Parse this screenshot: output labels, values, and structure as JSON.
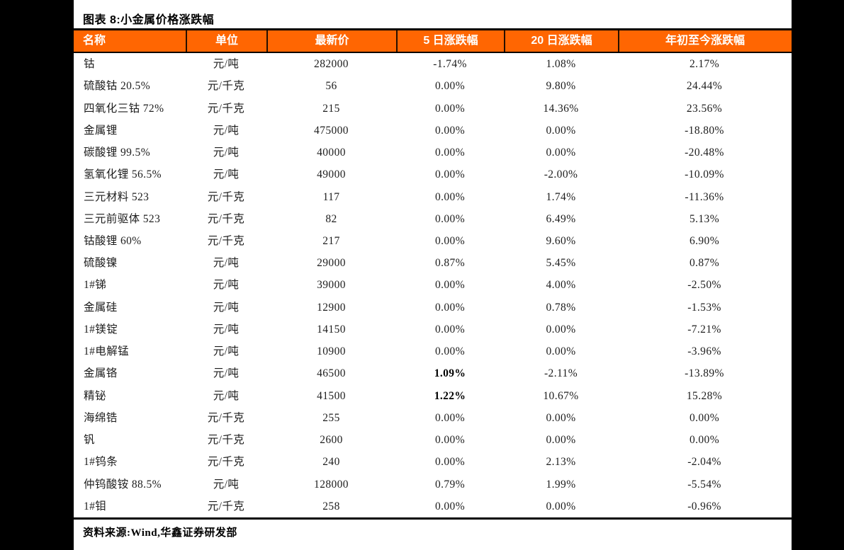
{
  "page": {
    "title": "图表 8:小金属价格涨跌幅",
    "source_note": "资料来源:Wind,华鑫证券研发部",
    "accent_color": "#FF6602",
    "header_text_color": "#FFFFFF",
    "letterbox_color": "#000000"
  },
  "table": {
    "columns": [
      {
        "key": "name",
        "label": "名称"
      },
      {
        "key": "unit",
        "label": "单位"
      },
      {
        "key": "price",
        "label": "最新价"
      },
      {
        "key": "chg5",
        "label": "5 日涨跌幅"
      },
      {
        "key": "chg20",
        "label": "20 日涨跌幅"
      },
      {
        "key": "ytd",
        "label": "年初至今涨跌幅"
      }
    ],
    "rows": [
      {
        "name": "钴",
        "unit": "元/吨",
        "price": "282000",
        "chg5": "-1.74%",
        "chg20": "1.08%",
        "ytd": "2.17%"
      },
      {
        "name": "硫酸钴 20.5%",
        "unit": "元/千克",
        "price": "56",
        "chg5": "0.00%",
        "chg20": "9.80%",
        "ytd": "24.44%"
      },
      {
        "name": "四氧化三钴 72%",
        "unit": "元/千克",
        "price": "215",
        "chg5": "0.00%",
        "chg20": "14.36%",
        "ytd": "23.56%"
      },
      {
        "name": "金属锂",
        "unit": "元/吨",
        "price": "475000",
        "chg5": "0.00%",
        "chg20": "0.00%",
        "ytd": "-18.80%"
      },
      {
        "name": "碳酸锂 99.5%",
        "unit": "元/吨",
        "price": "40000",
        "chg5": "0.00%",
        "chg20": "0.00%",
        "ytd": "-20.48%"
      },
      {
        "name": "氢氧化锂 56.5%",
        "unit": "元/吨",
        "price": "49000",
        "chg5": "0.00%",
        "chg20": "-2.00%",
        "ytd": "-10.09%"
      },
      {
        "name": "三元材料 523",
        "unit": "元/千克",
        "price": "117",
        "chg5": "0.00%",
        "chg20": "1.74%",
        "ytd": "-11.36%"
      },
      {
        "name": "三元前驱体 523",
        "unit": "元/千克",
        "price": "82",
        "chg5": "0.00%",
        "chg20": "6.49%",
        "ytd": "5.13%"
      },
      {
        "name": "钴酸锂 60%",
        "unit": "元/千克",
        "price": "217",
        "chg5": "0.00%",
        "chg20": "9.60%",
        "ytd": "6.90%"
      },
      {
        "name": "硫酸镍",
        "unit": "元/吨",
        "price": "29000",
        "chg5": "0.87%",
        "chg20": "5.45%",
        "ytd": "0.87%"
      },
      {
        "name": "1#锑",
        "unit": "元/吨",
        "price": "39000",
        "chg5": "0.00%",
        "chg20": "4.00%",
        "ytd": "-2.50%"
      },
      {
        "name": "金属硅",
        "unit": "元/吨",
        "price": "12900",
        "chg5": "0.00%",
        "chg20": "0.78%",
        "ytd": "-1.53%"
      },
      {
        "name": "1#镁锭",
        "unit": "元/吨",
        "price": "14150",
        "chg5": "0.00%",
        "chg20": "0.00%",
        "ytd": "-7.21%"
      },
      {
        "name": "1#电解锰",
        "unit": "元/吨",
        "price": "10900",
        "chg5": "0.00%",
        "chg20": "0.00%",
        "ytd": "-3.96%"
      },
      {
        "name": "金属铬",
        "unit": "元/吨",
        "price": "46500",
        "chg5": "1.09%",
        "chg5_bold": true,
        "chg20": "-2.11%",
        "ytd": "-13.89%"
      },
      {
        "name": "精铋",
        "unit": "元/吨",
        "price": "41500",
        "chg5": "1.22%",
        "chg5_bold": true,
        "chg20": "10.67%",
        "ytd": "15.28%"
      },
      {
        "name": "海绵锆",
        "unit": "元/千克",
        "price": "255",
        "chg5": "0.00%",
        "chg20": "0.00%",
        "ytd": "0.00%"
      },
      {
        "name": "钒",
        "unit": "元/千克",
        "price": "2600",
        "chg5": "0.00%",
        "chg20": "0.00%",
        "ytd": "0.00%"
      },
      {
        "name": "1#钨条",
        "unit": "元/千克",
        "price": "240",
        "chg5": "0.00%",
        "chg20": "2.13%",
        "ytd": "-2.04%"
      },
      {
        "name": "仲钨酸铵 88.5%",
        "unit": "元/吨",
        "price": "128000",
        "chg5": "0.79%",
        "chg20": "1.99%",
        "ytd": "-5.54%"
      },
      {
        "name": "1#钼",
        "unit": "元/千克",
        "price": "258",
        "chg5": "0.00%",
        "chg20": "0.00%",
        "ytd": "-0.96%"
      }
    ]
  }
}
